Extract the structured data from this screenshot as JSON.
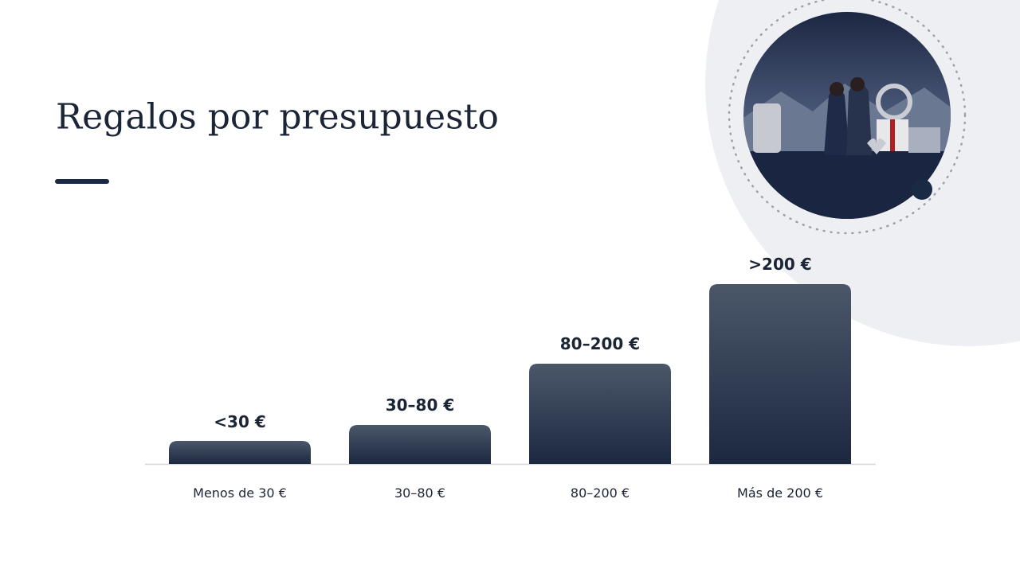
{
  "header": {
    "title": "Regalos por presupuesto"
  },
  "steps": [
    {
      "label": "<30 €",
      "caption": "Menos de 30 €"
    },
    {
      "label": "30–80 €",
      "caption": "30–80 €"
    },
    {
      "label": "80–200 €",
      "caption": "80–200 €"
    },
    {
      "label": ">200 €",
      "caption": "Más de 200 €"
    }
  ]
}
